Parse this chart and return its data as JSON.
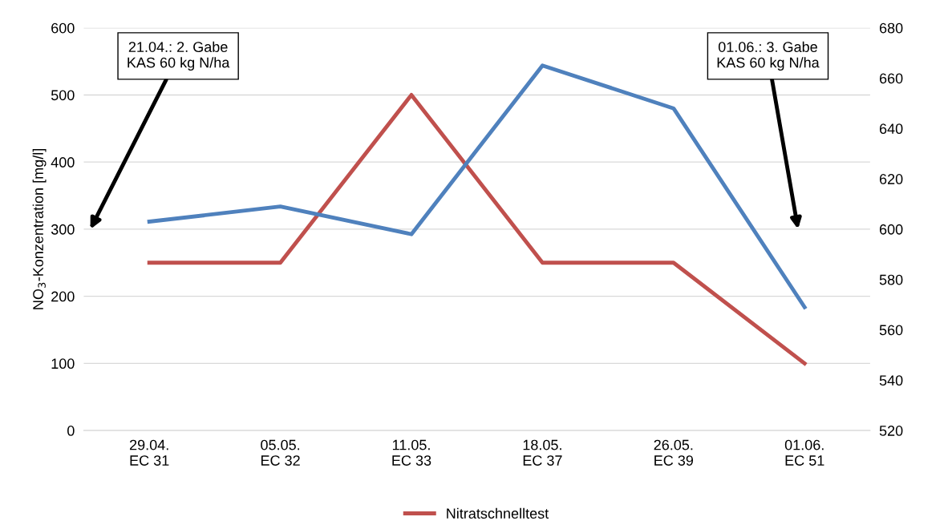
{
  "chart_data": {
    "type": "line",
    "categories": [
      "29.04.\nEC 31",
      "05.05.\nEC 32",
      "11.05.\nEC 33",
      "18.05.\nEC 37",
      "26.05.\nEC 39",
      "01.06.\nEC 51"
    ],
    "series": [
      {
        "name": "Nitratschnelltest",
        "color": "#c0504d",
        "values": [
          250,
          250,
          500,
          250,
          250,
          100
        ]
      },
      {
        "color": "#4f81bd",
        "axis": "y2",
        "values": [
          603,
          609,
          598,
          665,
          648,
          569
        ]
      }
    ],
    "ylabel": "NO$_{3}$-Konzentration [mg/l]",
    "ylim": [
      0,
      600
    ],
    "yticks": [
      0,
      100,
      200,
      300,
      400,
      500,
      600
    ],
    "y2lim": [
      520,
      680
    ],
    "y2ticks": [
      520,
      540,
      560,
      580,
      600,
      620,
      640,
      660,
      680
    ],
    "annotations": [
      "21.04.: 2. Gabe\nKAS 60 kg N/ha",
      "01.06.: 3. Gabe\nKAS 60 kg N/ha"
    ],
    "grid": "y",
    "legend": "bottom",
    "marker": "none",
    "line_style": "solid"
  }
}
